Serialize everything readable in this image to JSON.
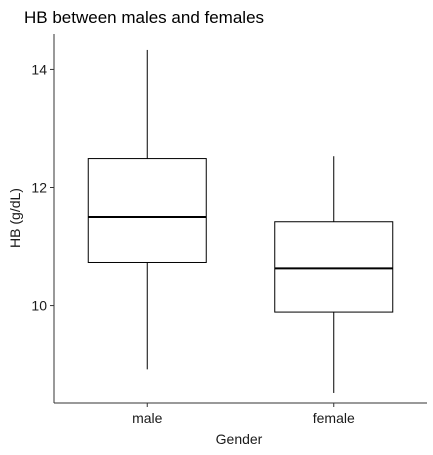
{
  "chart_data": {
    "type": "boxplot",
    "title": "HB between males and females",
    "xlabel": "Gender",
    "ylabel": "HB (g/dL)",
    "categories": [
      "male",
      "female"
    ],
    "boxes": [
      {
        "category": "male",
        "min": 8.92,
        "q1": 10.73,
        "median": 11.5,
        "q3": 12.49,
        "max": 14.33
      },
      {
        "category": "female",
        "min": 8.52,
        "q1": 9.89,
        "median": 10.63,
        "q3": 11.42,
        "max": 12.53
      }
    ],
    "yticks": [
      10,
      12,
      14
    ],
    "ylim": [
      8.35,
      14.6
    ],
    "grid": false,
    "legend": "none",
    "colors": {
      "box_fill": "#ffffff",
      "line": "#000000",
      "axis": "#333333"
    }
  }
}
